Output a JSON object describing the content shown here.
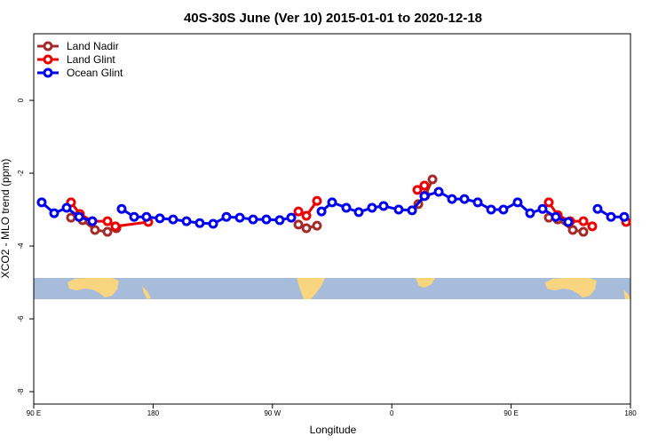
{
  "chart_data": {
    "type": "line",
    "title": "40S-30S June (Ver 10)   2015-01-01 to 2020-12-18",
    "x_label": "Longitude",
    "y_label": "XCO2 - MLO trend (ppm)",
    "xlim": [
      90,
      540
    ],
    "xticks": [
      {
        "value": 90,
        "label": "90 E"
      },
      180,
      {
        "value": 270,
        "label": "90 W"
      },
      {
        "value": 360,
        "label": "0"
      },
      {
        "value": 450,
        "label": "90 E"
      },
      {
        "value": 540,
        "label": "180"
      }
    ],
    "ylim": [
      -8.34,
      1.83
    ],
    "yticks": [
      0,
      -2,
      -4,
      -6,
      -8
    ],
    "legend": "top-left",
    "series": [
      {
        "name": "Land Nadir",
        "color": "#a52a2a",
        "x": [
          118.1,
          126.8,
          136.2,
          145.6,
          152.3,
          null,
          289.6,
          295.6,
          303.6,
          null,
          380.0,
          385.3,
          390.7,
          null,
          478.4,
          485.1,
          496.5,
          504.5
        ],
        "values": [
          -3.22,
          -3.29,
          -3.56,
          -3.61,
          -3.51,
          null,
          -3.41,
          -3.51,
          -3.44,
          null,
          -2.85,
          -2.61,
          -2.17,
          null,
          -3.22,
          -3.27,
          -3.56,
          -3.61
        ]
      },
      {
        "name": "Land Glint",
        "color": "#ee0000",
        "x": [
          118.1,
          124.8,
          134.2,
          145.6,
          151.6,
          176.4,
          null,
          289.6,
          295.6,
          303.6,
          null,
          379.3,
          384.6,
          null,
          478.4,
          485.1,
          494.5,
          504.5,
          511.2,
          null,
          536.7
        ],
        "values": [
          -2.8,
          -3.12,
          -3.32,
          -3.32,
          -3.46,
          -3.34,
          null,
          -3.05,
          -3.17,
          -2.76,
          null,
          -2.46,
          -2.34,
          null,
          -2.8,
          -3.15,
          -3.32,
          -3.32,
          -3.46,
          null,
          -3.34
        ]
      },
      {
        "name": "Ocean Glint",
        "color": "#0000ee",
        "x": [
          96.0,
          105.4,
          114.8,
          124.2,
          134.2,
          null,
          156.3,
          165.7,
          175.0,
          185.1,
          195.1,
          205.2,
          215.2,
          225.3,
          235.3,
          245.4,
          255.4,
          265.4,
          275.5,
          284.2,
          null,
          307.0,
          315.0,
          325.7,
          335.1,
          345.1,
          353.8,
          365.2,
          375.3,
          384.6,
          395.4,
          405.4,
          414.8,
          424.8,
          434.9,
          444.2,
          454.9,
          464.3,
          473.7,
          483.7,
          493.1,
          null,
          515.2,
          525.3,
          535.3
        ],
        "values": [
          -2.8,
          -3.1,
          -2.95,
          -3.2,
          -3.32,
          null,
          -2.98,
          -3.2,
          -3.2,
          -3.24,
          -3.27,
          -3.32,
          -3.37,
          -3.39,
          -3.2,
          -3.22,
          -3.27,
          -3.27,
          -3.29,
          -3.22,
          null,
          -3.05,
          -2.8,
          -2.95,
          -3.07,
          -2.95,
          -2.9,
          -3.0,
          -3.02,
          -2.63,
          -2.51,
          -2.71,
          -2.71,
          -2.8,
          -3.0,
          -3.0,
          -2.8,
          -3.1,
          -2.98,
          -3.2,
          -3.34,
          null,
          -2.98,
          -3.2,
          -3.2
        ]
      }
    ]
  }
}
